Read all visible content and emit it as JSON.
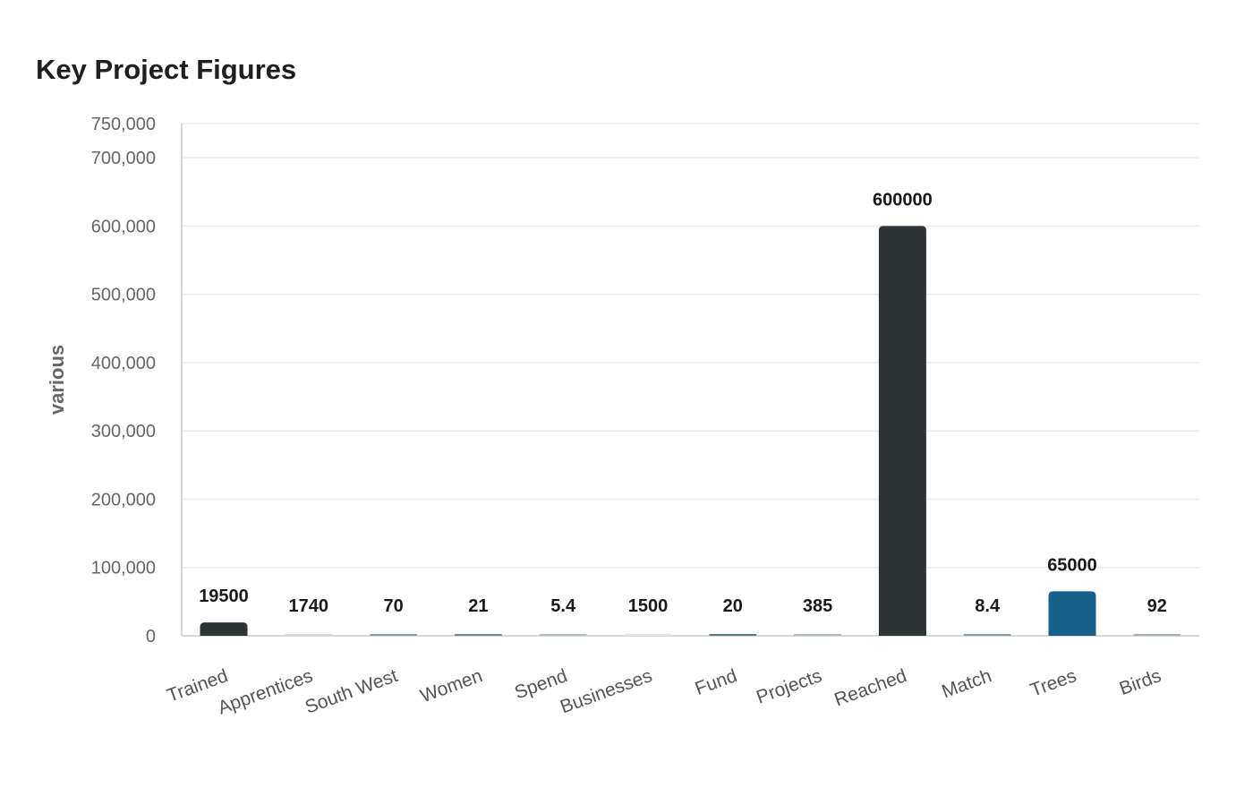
{
  "chart_data": {
    "type": "bar",
    "title": "Key Project Figures",
    "xlabel": "",
    "ylabel": "various",
    "ylim": [
      0,
      750000
    ],
    "yticks": [
      0,
      100000,
      200000,
      300000,
      400000,
      500000,
      600000,
      700000,
      750000
    ],
    "grid": true,
    "legend": "none",
    "categories": [
      "Trained",
      "Apprentices",
      "South West",
      "Women",
      "Spend",
      "Businesses",
      "Fund",
      "Projects",
      "Reached",
      "Match",
      "Trees",
      "Birds"
    ],
    "values": [
      19500,
      1740,
      70,
      21,
      5.4,
      1500,
      20,
      385,
      600000,
      8.4,
      65000,
      92
    ],
    "data_labels": [
      "19500",
      "1740",
      "70",
      "21",
      "5.4",
      "1500",
      "20",
      "385",
      "600000",
      "8.4",
      "65000",
      "92"
    ],
    "bar_colors": [
      "#2d3436",
      "#d3d6d8",
      "#7f9aa8",
      "#6e8996",
      "#b5bec3",
      "#e1e4e6",
      "#59788a",
      "#b0b8bc",
      "#2d3436",
      "#7f9aa8",
      "#17628c",
      "#a8b0b4"
    ],
    "colors": {
      "grid": "#ebebeb",
      "axis": "#cccccc"
    }
  }
}
